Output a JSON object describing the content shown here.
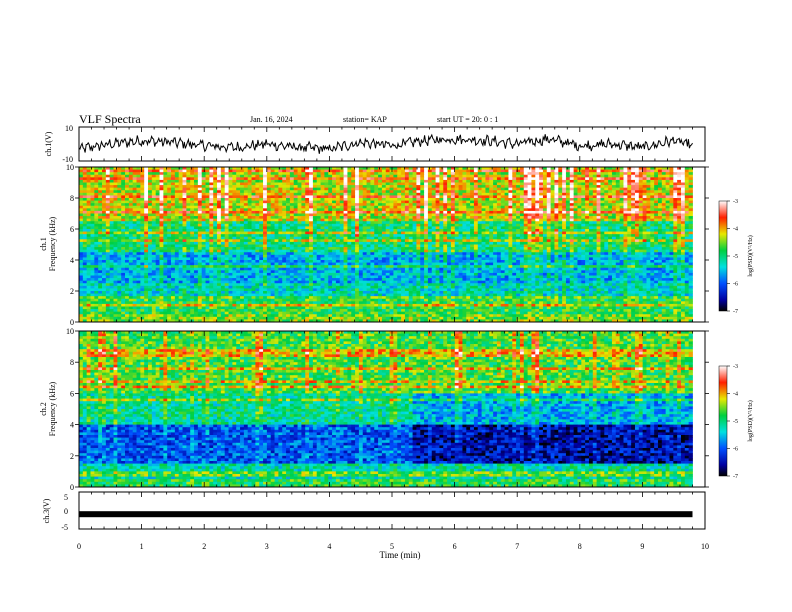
{
  "header": {
    "title": "VLF Spectra",
    "date": "Jan. 16, 2024",
    "station": "station= KAP",
    "start": "start  UT =   20: 0  : 1"
  },
  "chart_data": [
    {
      "type": "line",
      "panel": "ch1-waveform",
      "ylabel": "ch.1(V)",
      "ylim": [
        -10,
        10
      ],
      "yticks": [
        "10",
        "-10"
      ],
      "xlim": [
        0,
        10
      ],
      "series": [
        {
          "x": [
            0,
            0.5,
            1,
            1.5,
            2,
            2.5,
            3,
            3.5,
            4,
            4.5,
            5,
            5.5,
            6,
            6.5,
            7,
            7.5,
            8,
            8.5,
            9,
            9.5,
            9.8
          ],
          "values": [
            -3,
            0,
            2,
            1,
            -1,
            -2,
            0,
            -2,
            -3,
            1,
            -1,
            2,
            3,
            2,
            0,
            3,
            -1,
            0,
            -2,
            2,
            -1
          ]
        }
      ]
    },
    {
      "type": "heatmap",
      "panel": "ch1-spectrogram",
      "ylabel": "ch.1\nFrequency (kHz)",
      "ylabel_l1": "ch.1",
      "ylabel_l2": "Frequency (kHz)",
      "ylim": [
        0,
        10
      ],
      "yticks": [
        "0",
        "2",
        "4",
        "6",
        "8",
        "10"
      ],
      "xlim": [
        0,
        10
      ],
      "data_extent_min": 9.8,
      "colorbar": {
        "label": "log(PSD)(V²/Hz)",
        "range": [
          -7,
          -3
        ],
        "ticks": [
          "-3",
          "-4",
          "-5",
          "-6",
          "-7"
        ]
      },
      "band_levels": [
        {
          "f_low": 0,
          "f_high": 0.5,
          "log_psd": -4.5
        },
        {
          "f_low": 0.5,
          "f_high": 1.5,
          "log_psd": -4.8
        },
        {
          "f_low": 1.5,
          "f_high": 2.5,
          "log_psd": -5.3
        },
        {
          "f_low": 2.5,
          "f_high": 4.5,
          "log_psd": -5.6
        },
        {
          "f_low": 4.5,
          "f_high": 6.5,
          "log_psd": -5.0
        },
        {
          "f_low": 6.5,
          "f_high": 10,
          "log_psd": -4.3
        }
      ]
    },
    {
      "type": "heatmap",
      "panel": "ch2-spectrogram",
      "ylabel": "ch.2\nFrequency (kHz)",
      "ylabel_l1": "ch.2",
      "ylabel_l2": "Frequency (kHz)",
      "ylim": [
        0,
        10
      ],
      "yticks": [
        "0",
        "2",
        "4",
        "6",
        "8",
        "10"
      ],
      "xlim": [
        0,
        10
      ],
      "data_extent_min": 9.8,
      "colorbar": {
        "label": "log(PSD)(V²/Hz)",
        "range": [
          -7,
          -3
        ],
        "ticks": [
          "-3",
          "-4",
          "-5",
          "-6",
          "-7"
        ]
      },
      "band_levels": [
        {
          "f_low": 0,
          "f_high": 0.5,
          "log_psd": -4.8
        },
        {
          "f_low": 0.5,
          "f_high": 1.5,
          "log_psd": -5.2
        },
        {
          "f_low": 1.5,
          "f_high": 4.0,
          "log_psd": -6.0
        },
        {
          "f_low": 4.0,
          "f_high": 6.0,
          "log_psd": -5.1
        },
        {
          "f_low": 6.0,
          "f_high": 10,
          "log_psd": -4.7
        }
      ]
    },
    {
      "type": "line",
      "panel": "ch3-waveform",
      "ylabel": "ch.3(V)",
      "ylim": [
        -5,
        5
      ],
      "yticks": [
        "5",
        "0",
        "-5"
      ],
      "xlim": [
        0,
        10
      ],
      "xlabel": "Time  (min)",
      "xticks": [
        "0",
        "1",
        "2",
        "3",
        "4",
        "5",
        "6",
        "7",
        "8",
        "9",
        "10"
      ],
      "series": [
        {
          "x": [
            0,
            9.8
          ],
          "values": [
            -1,
            -1
          ]
        }
      ]
    }
  ]
}
